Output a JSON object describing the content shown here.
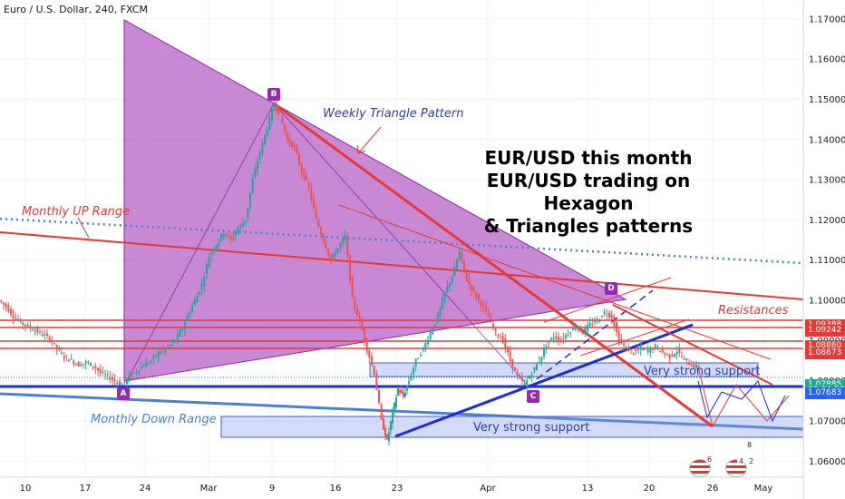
{
  "header": {
    "symbol_line": "Euro / U.S. Dollar, 240, FXCM"
  },
  "annotations": {
    "title_lines": [
      "EUR/USD this month",
      "EUR/USD trading on Hexagon",
      "& Triangles patterns"
    ],
    "weekly_triangle": "Weekly Triangle Pattern",
    "monthly_up": "Monthly UP Range",
    "monthly_down": "Monthly Down Range",
    "resistances": "Resistances",
    "support_right": "Very strong support",
    "support_bottom": "Very strong support",
    "points": {
      "A": "A",
      "B": "B",
      "C": "C",
      "D": "D"
    },
    "flag_badges": [
      "6",
      "8",
      "4",
      "2"
    ]
  },
  "price_tags": [
    {
      "label": "1.09388",
      "color": "#e53935",
      "value": 1.09388
    },
    {
      "label": "1.09242",
      "color": "#e53935",
      "value": 1.09242
    },
    {
      "label": "1.08860",
      "color": "#e53935",
      "value": 1.0886
    },
    {
      "label": "1.08673",
      "color": "#e53935",
      "value": 1.08673
    },
    {
      "label": "1.07885",
      "color": "#26a69a",
      "value": 1.07885
    },
    {
      "label": "03:34:56",
      "color": "#26a69a",
      "value": 1.0775
    },
    {
      "label": "1.07695",
      "color": "#2962ff",
      "value": 1.07695
    },
    {
      "label": "1.07683",
      "color": "#2962ff",
      "value": 1.07683
    }
  ],
  "colors": {
    "triangle_fill": "#9c27b0",
    "red": "#e53935",
    "blue": "#1e2be0",
    "up": "#26a69a",
    "down": "#ef5350",
    "range_blue": "#4a7fd6"
  },
  "chart_data": {
    "type": "candlestick",
    "title": "Euro / U.S. Dollar, 240, FXCM",
    "x_ticks": [
      "10",
      "17",
      "24",
      "Mar",
      "9",
      "16",
      "23",
      "Apr",
      "13",
      "20",
      "26",
      "May"
    ],
    "y_ticks": [
      "1.17000",
      "1.16000",
      "1.15000",
      "1.14000",
      "1.13000",
      "1.12000",
      "1.11000",
      "1.10000",
      "1.09000",
      "1.08000",
      "1.07000",
      "1.06000"
    ],
    "ylim": [
      1.056,
      1.1747
    ],
    "series": [
      {
        "name": "",
        "path": [
          [
            0,
            1.1
          ],
          [
            8,
            1.0985
          ],
          [
            16,
            1.096
          ],
          [
            24,
            1.0945
          ],
          [
            32,
            1.0935
          ],
          [
            40,
            1.0925
          ],
          [
            48,
            1.0915
          ],
          [
            56,
            1.0905
          ],
          [
            64,
            1.088
          ],
          [
            72,
            1.086
          ],
          [
            80,
            1.085
          ],
          [
            88,
            1.084
          ],
          [
            96,
            1.0845
          ],
          [
            104,
            1.0838
          ],
          [
            112,
            1.082
          ],
          [
            120,
            1.081
          ],
          [
            128,
            1.08
          ],
          [
            136,
            1.079
          ],
          [
            144,
            1.081
          ],
          [
            152,
            1.0825
          ],
          [
            160,
            1.084
          ],
          [
            168,
            1.085
          ],
          [
            176,
            1.087
          ],
          [
            184,
            1.088
          ],
          [
            192,
            1.0895
          ],
          [
            200,
            1.092
          ],
          [
            208,
            1.096
          ],
          [
            216,
            1.1
          ],
          [
            224,
            1.104
          ],
          [
            232,
            1.111
          ],
          [
            240,
            1.114
          ],
          [
            248,
            1.117
          ],
          [
            256,
            1.115
          ],
          [
            264,
            1.118
          ],
          [
            272,
            1.12
          ],
          [
            280,
            1.13
          ],
          [
            288,
            1.137
          ],
          [
            296,
            1.143
          ],
          [
            304,
            1.149
          ],
          [
            310,
            1.146
          ],
          [
            318,
            1.14
          ],
          [
            326,
            1.138
          ],
          [
            334,
            1.132
          ],
          [
            342,
            1.128
          ],
          [
            350,
            1.12
          ],
          [
            358,
            1.115
          ],
          [
            366,
            1.11
          ],
          [
            374,
            1.113
          ],
          [
            382,
            1.116
          ],
          [
            390,
            1.1
          ],
          [
            398,
            1.095
          ],
          [
            406,
            1.088
          ],
          [
            414,
            1.082
          ],
          [
            422,
            1.07
          ],
          [
            428,
            1.065
          ],
          [
            434,
            1.072
          ],
          [
            440,
            1.078
          ],
          [
            446,
            1.076
          ],
          [
            452,
            1.08
          ],
          [
            460,
            1.085
          ],
          [
            468,
            1.088
          ],
          [
            476,
            1.092
          ],
          [
            484,
            1.096
          ],
          [
            492,
            1.102
          ],
          [
            500,
            1.106
          ],
          [
            508,
            1.112
          ],
          [
            516,
            1.105
          ],
          [
            524,
            1.102
          ],
          [
            532,
            1.099
          ],
          [
            540,
            1.096
          ],
          [
            548,
            1.092
          ],
          [
            556,
            1.09
          ],
          [
            564,
            1.085
          ],
          [
            572,
            1.081
          ],
          [
            580,
            1.079
          ],
          [
            588,
            1.082
          ],
          [
            596,
            1.085
          ],
          [
            604,
            1.089
          ],
          [
            612,
            1.091
          ],
          [
            620,
            1.09
          ],
          [
            628,
            1.092
          ],
          [
            636,
            1.0935
          ],
          [
            644,
            1.092
          ],
          [
            652,
            1.094
          ],
          [
            660,
            1.095
          ],
          [
            668,
            1.097
          ],
          [
            676,
            1.096
          ],
          [
            684,
            1.09
          ],
          [
            692,
            1.088
          ],
          [
            700,
            1.087
          ],
          [
            708,
            1.088
          ],
          [
            716,
            1.0875
          ],
          [
            724,
            1.0885
          ],
          [
            732,
            1.087
          ],
          [
            740,
            1.086
          ],
          [
            748,
            1.0875
          ],
          [
            756,
            1.085
          ],
          [
            764,
            1.084
          ],
          [
            772,
            1.083
          ]
        ]
      }
    ]
  }
}
